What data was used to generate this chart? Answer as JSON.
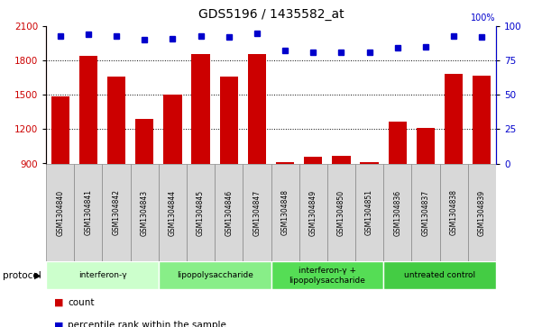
{
  "title": "GDS5196 / 1435582_at",
  "samples": [
    "GSM1304840",
    "GSM1304841",
    "GSM1304842",
    "GSM1304843",
    "GSM1304844",
    "GSM1304845",
    "GSM1304846",
    "GSM1304847",
    "GSM1304848",
    "GSM1304849",
    "GSM1304850",
    "GSM1304851",
    "GSM1304836",
    "GSM1304837",
    "GSM1304838",
    "GSM1304839"
  ],
  "counts": [
    1490,
    1840,
    1660,
    1290,
    1500,
    1860,
    1660,
    1860,
    910,
    960,
    965,
    915,
    1265,
    1210,
    1680,
    1665
  ],
  "percentiles": [
    93,
    94,
    93,
    90,
    91,
    93,
    92,
    95,
    82,
    81,
    81,
    81,
    84,
    85,
    93,
    92
  ],
  "ylim_left": [
    900,
    2100
  ],
  "ylim_right": [
    0,
    100
  ],
  "yticks_left": [
    900,
    1200,
    1500,
    1800,
    2100
  ],
  "yticks_right": [
    0,
    25,
    50,
    75,
    100
  ],
  "bar_color": "#cc0000",
  "dot_color": "#0000cc",
  "grid_color": "#000000",
  "protocol_groups": [
    {
      "label": "interferon-γ",
      "start": 0,
      "end": 4,
      "color": "#ccffcc"
    },
    {
      "label": "lipopolysaccharide",
      "start": 4,
      "end": 8,
      "color": "#88ee88"
    },
    {
      "label": "interferon-γ +\nlipopolysaccharide",
      "start": 8,
      "end": 12,
      "color": "#55dd55"
    },
    {
      "label": "untreated control",
      "start": 12,
      "end": 16,
      "color": "#44cc44"
    }
  ],
  "legend_count_label": "count",
  "legend_pct_label": "percentile rank within the sample",
  "protocol_label": "protocol"
}
